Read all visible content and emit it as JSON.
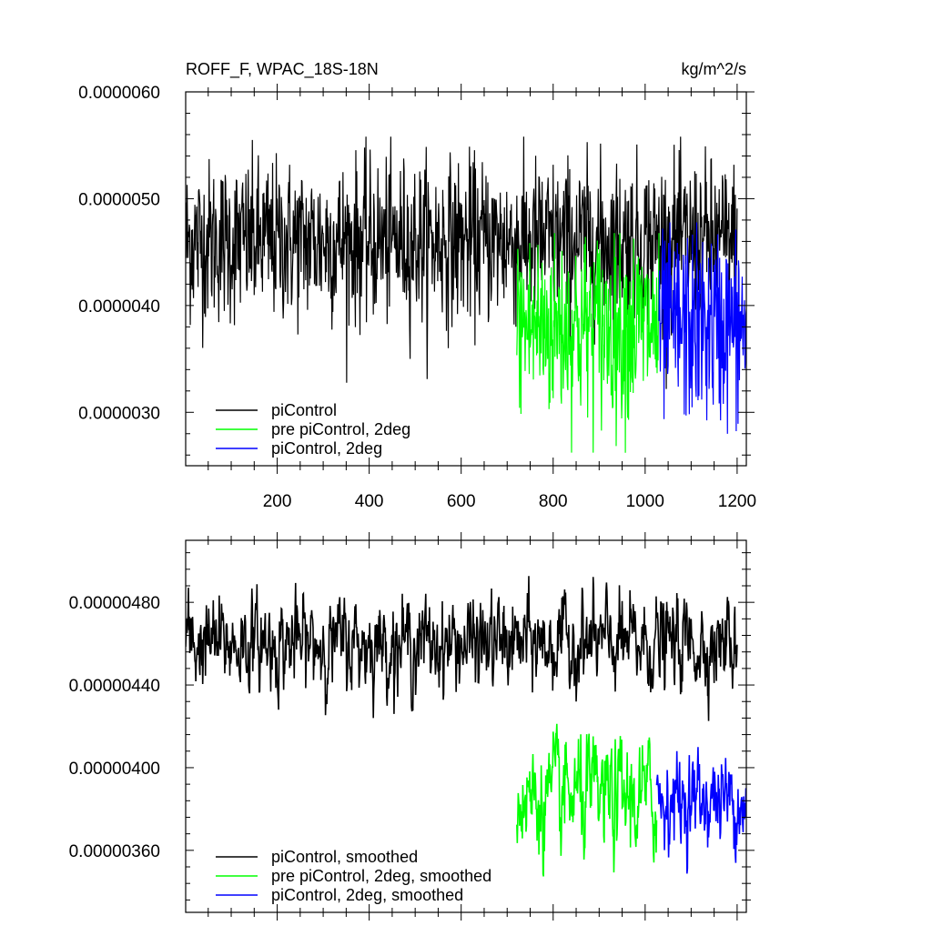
{
  "chart_data": [
    {
      "type": "line",
      "title": "ROFF_F, WPAC_18S-18N",
      "units": "kg/m^2/s",
      "xlim": [
        1,
        1220
      ],
      "ylim": [
        2.5e-06,
        6e-06
      ],
      "x_tick_labels": [
        "200",
        "400",
        "600",
        "800",
        "1000",
        "1200"
      ],
      "x_ticks": [
        200,
        400,
        600,
        800,
        1000,
        1200
      ],
      "y_tick_labels": [
        "0.0000030",
        "0.0000040",
        "0.0000050",
        "0.0000060"
      ],
      "y_ticks": [
        3e-06,
        4e-06,
        5e-06,
        6e-06
      ],
      "legend_position": "bottom-left",
      "grid": false,
      "series": [
        {
          "name": "piControl",
          "color": "#000000",
          "x_start": 1,
          "x_end": 1200,
          "mean": 4.6e-06,
          "sd": 3.8e-07,
          "min": 3.2e-06,
          "max": 5.6e-06
        },
        {
          "name": "pre piControl, 2deg",
          "color": "#00ff00",
          "x_start": 721,
          "x_end": 1030,
          "mean": 3.8e-06,
          "sd": 4.5e-07,
          "min": 2.6e-06,
          "max": 4.7e-06
        },
        {
          "name": "piControl, 2deg",
          "color": "#0000ff",
          "x_start": 1030,
          "x_end": 1220,
          "mean": 3.8e-06,
          "sd": 4.5e-07,
          "min": 2.6e-06,
          "max": 4.8e-06
        }
      ]
    },
    {
      "type": "line",
      "xlim": [
        1,
        1220
      ],
      "ylim": [
        3.3e-06,
        5.1e-06
      ],
      "y_tick_labels": [
        "0.00000360",
        "0.00000400",
        "0.00000440",
        "0.00000480"
      ],
      "y_ticks": [
        3.6e-06,
        4e-06,
        4.4e-06,
        4.8e-06
      ],
      "x_ticks": [
        200,
        400,
        600,
        800,
        1000,
        1200
      ],
      "legend_position": "bottom-left",
      "grid": false,
      "series": [
        {
          "name": "piControl, smoothed",
          "color": "#000000",
          "x_start": 1,
          "x_end": 1200,
          "mean": 4.6e-06,
          "sd": 1.2e-07,
          "min": 4.22e-06,
          "max": 5.07e-06
        },
        {
          "name": "pre piControl, 2deg, smoothed",
          "color": "#00ff00",
          "x_start": 721,
          "x_end": 1025,
          "mean": 3.85e-06,
          "sd": 1.5e-07,
          "min": 3.33e-06,
          "max": 4.33e-06
        },
        {
          "name": "piControl, 2deg, smoothed",
          "color": "#0000ff",
          "x_start": 1025,
          "x_end": 1220,
          "mean": 3.85e-06,
          "sd": 1.2e-07,
          "min": 3.33e-06,
          "max": 4.23e-06
        }
      ]
    }
  ]
}
